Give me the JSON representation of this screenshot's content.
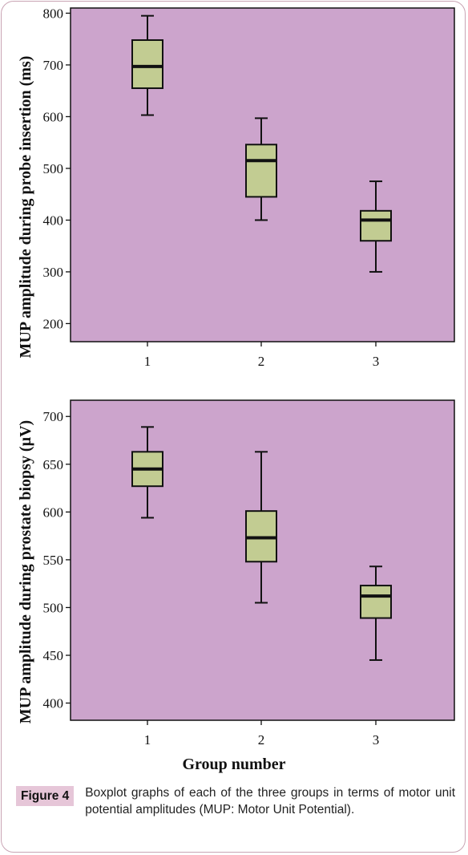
{
  "chart_data": [
    {
      "type": "boxplot",
      "ylabel": "MUP amplitude during probe insertion (ms)",
      "xlabel": "",
      "categories": [
        "1",
        "2",
        "3"
      ],
      "ylim": [
        165,
        810
      ],
      "yticks": [
        200,
        300,
        400,
        500,
        600,
        700,
        800
      ],
      "grid": false,
      "background": "#cca4cc",
      "box_color": "#c2cc92",
      "boxes": [
        {
          "group": "1",
          "min": 603,
          "q1": 655,
          "median": 697,
          "q3": 748,
          "max": 795
        },
        {
          "group": "2",
          "min": 400,
          "q1": 445,
          "median": 515,
          "q3": 546,
          "max": 597
        },
        {
          "group": "3",
          "min": 300,
          "q1": 360,
          "median": 400,
          "q3": 418,
          "max": 475
        }
      ]
    },
    {
      "type": "boxplot",
      "ylabel": "MUP amplitude during prostate biopsy (µV)",
      "xlabel": "Group number",
      "categories": [
        "1",
        "2",
        "3"
      ],
      "ylim": [
        382,
        717
      ],
      "yticks": [
        400,
        450,
        500,
        550,
        600,
        650,
        700
      ],
      "grid": false,
      "background": "#cca4cc",
      "box_color": "#c2cc92",
      "boxes": [
        {
          "group": "1",
          "min": 594,
          "q1": 627,
          "median": 645,
          "q3": 663,
          "max": 689
        },
        {
          "group": "2",
          "min": 505,
          "q1": 548,
          "median": 573,
          "q3": 601,
          "max": 663
        },
        {
          "group": "3",
          "min": 445,
          "q1": 489,
          "median": 512,
          "q3": 523,
          "max": 543
        }
      ]
    }
  ],
  "caption": {
    "label": "Figure 4",
    "text": "Boxplot graphs of each of the three groups in terms of motor unit potential amplitudes (MUP: Motor Unit Potential)."
  }
}
